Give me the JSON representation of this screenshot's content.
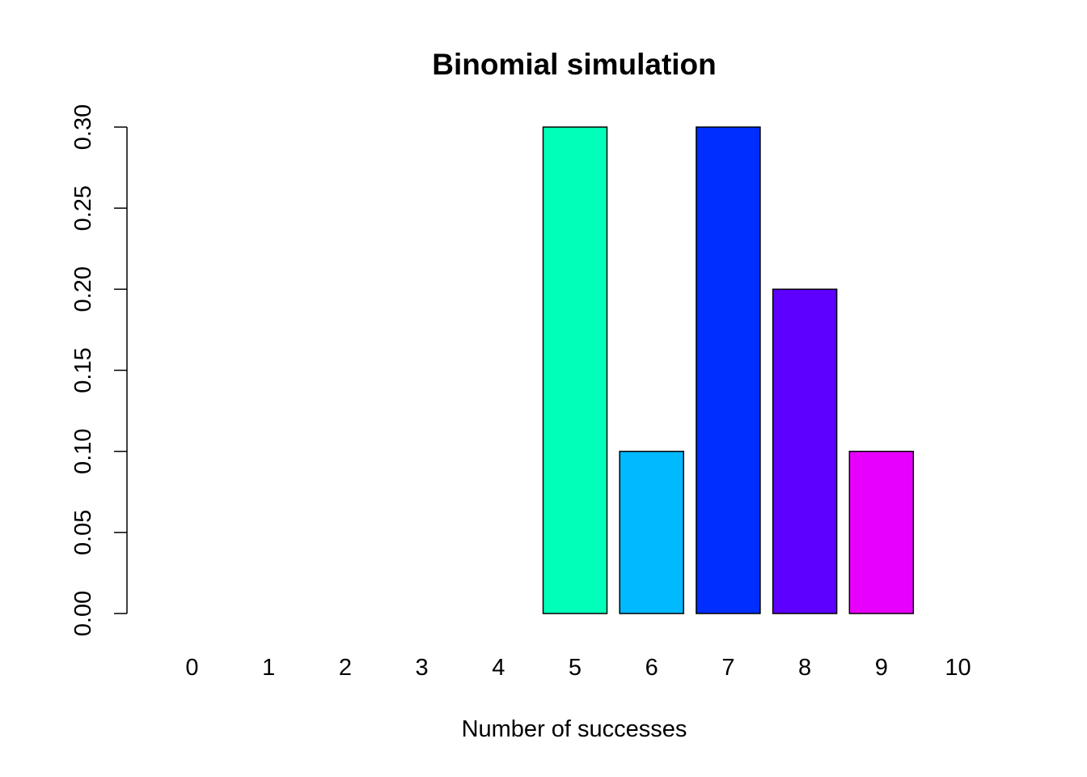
{
  "chart_data": {
    "type": "bar",
    "title": "Binomial simulation",
    "xlabel": "Number of successes",
    "ylabel": "",
    "categories": [
      "0",
      "1",
      "2",
      "3",
      "4",
      "5",
      "6",
      "7",
      "8",
      "9",
      "10"
    ],
    "values": [
      0,
      0,
      0,
      0,
      0,
      0.3,
      0.1,
      0.3,
      0.2,
      0.1,
      0
    ],
    "colors": [
      "#FF0000",
      "#FF8B00",
      "#E8FF00",
      "#5DFF00",
      "#00FF2E",
      "#00FFB9",
      "#00B9FF",
      "#002EFF",
      "#5D00FF",
      "#E800FF",
      "#FF008B"
    ],
    "ylim": [
      0,
      0.3
    ],
    "yticks": [
      "0.00",
      "0.05",
      "0.10",
      "0.15",
      "0.20",
      "0.25",
      "0.30"
    ],
    "grid": false,
    "legend": "none"
  }
}
